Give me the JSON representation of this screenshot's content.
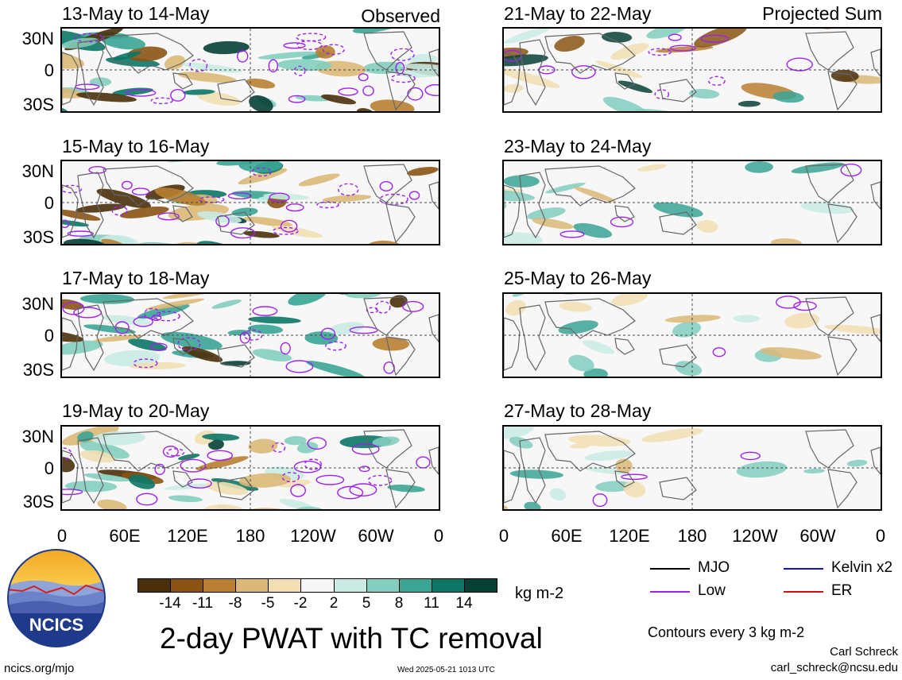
{
  "observed_label": "Observed",
  "projected_label": "Projected Sum",
  "left_panels": [
    {
      "title": "13-May to 14-May"
    },
    {
      "title": "15-May to 16-May"
    },
    {
      "title": "17-May to 18-May"
    },
    {
      "title": "19-May to 20-May"
    }
  ],
  "right_panels": [
    {
      "title": "21-May to 22-May"
    },
    {
      "title": "23-May to 24-May"
    },
    {
      "title": "25-May to 26-May"
    },
    {
      "title": "27-May to 28-May"
    }
  ],
  "lat_ticks": [
    "30N",
    "0",
    "30S"
  ],
  "lon_ticks": [
    "0",
    "60E",
    "120E",
    "180",
    "120W",
    "60W",
    "0"
  ],
  "colorbar": {
    "ticks": [
      "-14",
      "-11",
      "-8",
      "-5",
      "-2",
      "2",
      "5",
      "8",
      "11",
      "14"
    ],
    "units": "kg m-2",
    "colors": [
      "#4a2f0a",
      "#8a5314",
      "#b87f32",
      "#dab877",
      "#f1dfb3",
      "#f6f6f6",
      "#c9ebe4",
      "#83cebf",
      "#3aa595",
      "#0b7666",
      "#073f35"
    ]
  },
  "legend": {
    "items": [
      {
        "label": "MJO",
        "color": "#000000"
      },
      {
        "label": "Kelvin x2",
        "color": "#1010e0"
      },
      {
        "label": "Low",
        "color": "#a020f0"
      },
      {
        "label": "ER",
        "color": "#d01010"
      }
    ],
    "contour_note": "Contours every 3 kg m-2"
  },
  "logo_text": "NCICS",
  "main_title": "2-day PWAT with TC removal",
  "author": "Carl Schreck",
  "email": "carl_schreck@ncsu.edu",
  "website": "ncics.org/mjo",
  "timestamp": "Wed 2025-05-21 1013 UTC"
}
